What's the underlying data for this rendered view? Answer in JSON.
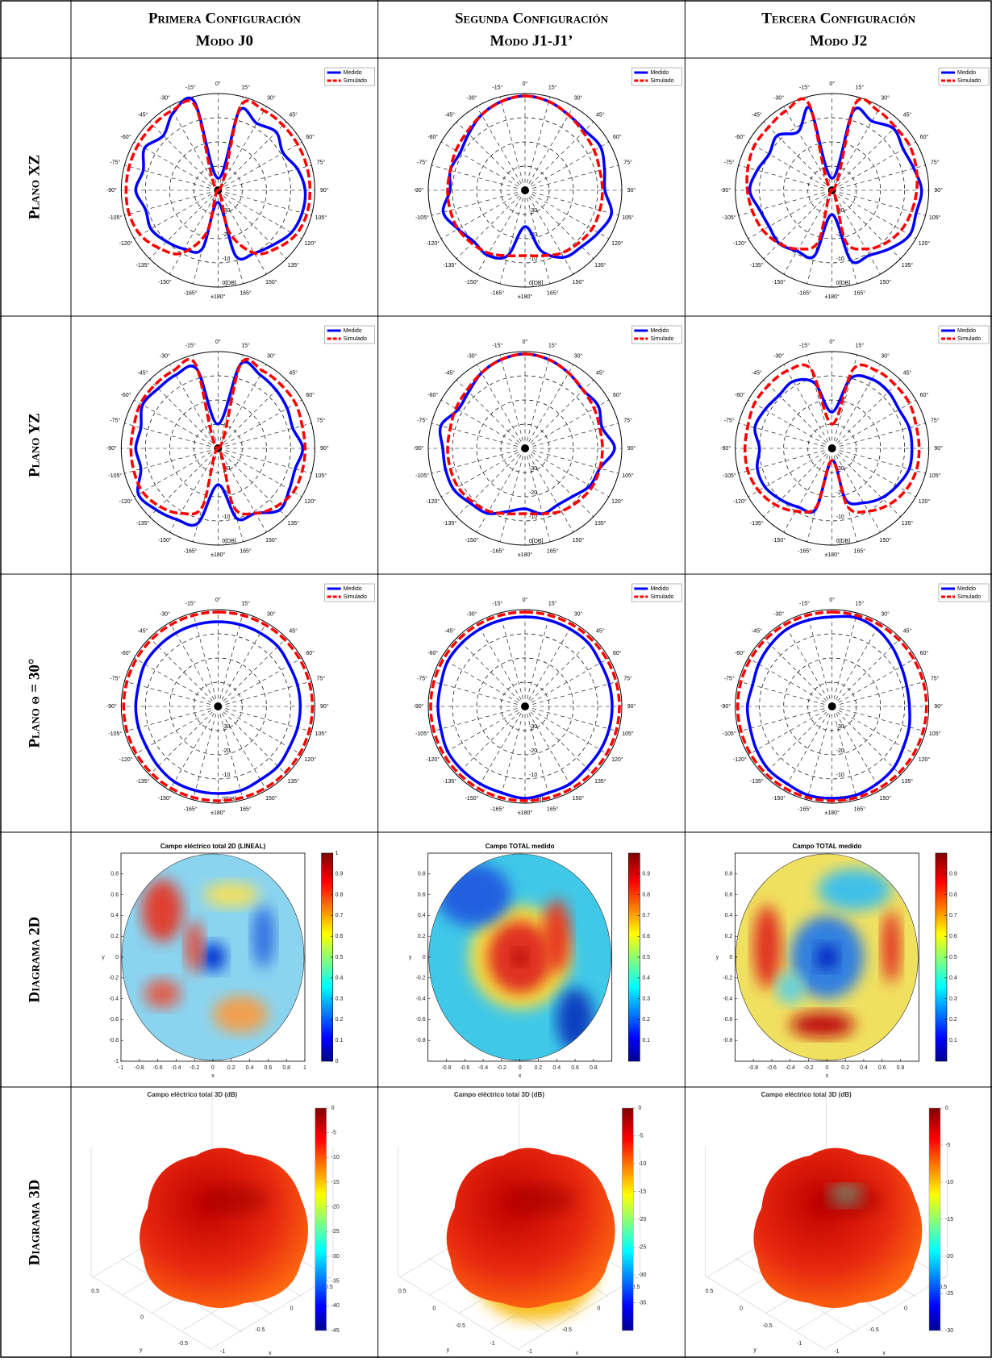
{
  "table": {
    "columns": [
      {
        "title": "Primera Configuración",
        "subtitle": "Modo J0"
      },
      {
        "title": "Segunda Configuración",
        "subtitle": "Modo J1-J1’"
      },
      {
        "title": "Tercera Configuración",
        "subtitle": "Modo J2"
      }
    ],
    "rows": [
      "Plano XZ",
      "Plano YZ",
      "Plano θ = 30°",
      "Diagrama 2D",
      "Diagrama 3D"
    ]
  },
  "polar_axis": {
    "theta": [
      0,
      15,
      30,
      45,
      60,
      75,
      90,
      105,
      120,
      135,
      150,
      165,
      180,
      195,
      210,
      225,
      240,
      255,
      270,
      285,
      300,
      315,
      330,
      345
    ],
    "theta_labels": [
      "0°",
      "15°",
      "30°",
      "45°",
      "60°",
      "75°",
      "90°",
      "105°",
      "120°",
      "135°",
      "150°",
      "165°",
      "±180°",
      "-165°",
      "-150°",
      "-135°",
      "-120°",
      "-105°",
      "-90°",
      "-75°",
      "-60°",
      "-45°",
      "-30°",
      "-15°"
    ],
    "rlim": [
      -40,
      0
    ],
    "rticks": [
      -30,
      -20,
      -10,
      {
        "value": 0,
        "label": "0[DB]"
      }
    ]
  },
  "chart_data": [
    {
      "type": "polar",
      "series": [
        {
          "name": "Medido",
          "color": "#0000ff",
          "values": [
            -35,
            -6,
            -8,
            -6,
            -9,
            -6,
            -4,
            -4,
            -5,
            -8,
            -10,
            -12,
            -35,
            -15,
            -12,
            -10,
            -8,
            -9,
            -6,
            -8,
            -5,
            -8,
            -3,
            -2
          ]
        },
        {
          "name": "Simulado",
          "color": "#ff0000",
          "dashed": true,
          "values": [
            -40,
            -4,
            -2,
            -2,
            -2,
            -2,
            -2,
            -2,
            -3,
            -6,
            -10,
            -22,
            -40,
            -22,
            -10,
            -6,
            -3,
            -2,
            -2,
            -2,
            -2,
            -2,
            -2,
            -4
          ]
        }
      ]
    },
    {
      "type": "polar",
      "series": [
        {
          "name": "Medido",
          "color": "#0000ff",
          "values": [
            -1,
            -2,
            -4,
            -5,
            -4,
            -6,
            -7,
            -3,
            -5,
            -7,
            -8,
            -14,
            -25,
            -12,
            -9,
            -10,
            -8,
            -5,
            -9,
            -8,
            -9,
            -7,
            -4,
            -2
          ]
        },
        {
          "name": "Simulado",
          "color": "#ff0000",
          "dashed": true,
          "values": [
            -1,
            -2,
            -4,
            -6,
            -7,
            -8,
            -8,
            -8,
            -8,
            -9,
            -10,
            -12,
            -13,
            -12,
            -10,
            -9,
            -8,
            -8,
            -8,
            -8,
            -7,
            -6,
            -4,
            -2
          ]
        }
      ]
    },
    {
      "type": "polar",
      "series": [
        {
          "name": "Medido",
          "color": "#0000ff",
          "values": [
            -35,
            -6,
            -7,
            -4,
            -6,
            -5,
            -3,
            -4,
            -3,
            -6,
            -9,
            -10,
            -30,
            -12,
            -11,
            -9,
            -10,
            -9,
            -6,
            -8,
            -10,
            -8,
            -12,
            -5
          ]
        },
        {
          "name": "Simulado",
          "color": "#ff0000",
          "dashed": true,
          "values": [
            -40,
            -3,
            -2,
            -3,
            -3,
            -4,
            -5,
            -6,
            -7,
            -9,
            -12,
            -18,
            -40,
            -18,
            -12,
            -9,
            -7,
            -6,
            -5,
            -4,
            -3,
            -3,
            -2,
            -3
          ]
        }
      ]
    },
    {
      "type": "polar",
      "series": [
        {
          "name": "Medido",
          "color": "#0000ff",
          "values": [
            -30,
            -4,
            -5,
            -6,
            -7,
            -8,
            -5,
            -7,
            -6,
            -4,
            -9,
            -10,
            -25,
            -8,
            -6,
            -4,
            -2,
            -7,
            -6,
            -7,
            -4,
            -5,
            -5,
            -6
          ]
        },
        {
          "name": "Simulado",
          "color": "#ff0000",
          "dashed": true,
          "values": [
            -40,
            -4,
            -3,
            -3,
            -3,
            -4,
            -4,
            -4,
            -4,
            -6,
            -9,
            -15,
            -40,
            -15,
            -9,
            -6,
            -4,
            -4,
            -4,
            -4,
            -3,
            -3,
            -3,
            -4
          ]
        }
      ]
    },
    {
      "type": "polar",
      "series": [
        {
          "name": "Medido",
          "color": "#0000ff",
          "values": [
            -1,
            -2,
            -4,
            -6,
            -5,
            -7,
            -3,
            -8,
            -9,
            -12,
            -13,
            -12,
            -15,
            -13,
            -9,
            -8,
            -6,
            -6,
            -6,
            -4,
            -8,
            -7,
            -4,
            -2
          ]
        },
        {
          "name": "Simulado",
          "color": "#ff0000",
          "dashed": true,
          "values": [
            -1,
            -2,
            -4,
            -6,
            -7,
            -8,
            -8,
            -8,
            -8,
            -9,
            -10,
            -12,
            -13,
            -12,
            -10,
            -9,
            -8,
            -8,
            -8,
            -8,
            -7,
            -6,
            -4,
            -2
          ]
        }
      ]
    },
    {
      "type": "polar",
      "series": [
        {
          "name": "Medido",
          "color": "#0000ff",
          "values": [
            -25,
            -10,
            -7,
            -7,
            -8,
            -7,
            -7,
            -7,
            -9,
            -11,
            -14,
            -18,
            -35,
            -14,
            -12,
            -10,
            -8,
            -8,
            -10,
            -7,
            -8,
            -9,
            -8,
            -12
          ]
        },
        {
          "name": "Simulado",
          "color": "#ff0000",
          "dashed": true,
          "values": [
            -30,
            -6,
            -3,
            -3,
            -3,
            -4,
            -4,
            -4,
            -5,
            -7,
            -10,
            -15,
            -35,
            -15,
            -10,
            -7,
            -5,
            -4,
            -4,
            -4,
            -3,
            -3,
            -3,
            -6
          ]
        }
      ]
    },
    {
      "type": "polar",
      "series": [
        {
          "name": "Medido",
          "color": "#0000ff",
          "values": [
            -5,
            -5,
            -5,
            -5,
            -6,
            -6,
            -6,
            -6,
            -6,
            -5,
            -5,
            -4,
            -4,
            -4,
            -4,
            -5,
            -6,
            -6,
            -6,
            -6,
            -5,
            -5,
            -5,
            -5
          ]
        },
        {
          "name": "Simulado",
          "color": "#ff0000",
          "dashed": true,
          "values": [
            -1,
            -1,
            -1,
            -1,
            -1,
            -1,
            -1,
            -1,
            -1,
            -1,
            -1,
            -1,
            -1,
            -1,
            -1,
            -1,
            -1,
            -1,
            -1,
            -1,
            -1,
            -1,
            -1,
            -1
          ]
        }
      ]
    },
    {
      "type": "polar",
      "series": [
        {
          "name": "Medido",
          "color": "#0000ff",
          "values": [
            -3,
            -3,
            -3,
            -3,
            -4,
            -4,
            -4,
            -4,
            -4,
            -4,
            -3,
            -3,
            -2,
            -3,
            -3,
            -3,
            -3,
            -4,
            -4,
            -4,
            -3,
            -3,
            -3,
            -3
          ]
        },
        {
          "name": "Simulado",
          "color": "#ff0000",
          "dashed": true,
          "values": [
            -1,
            -1,
            -1,
            -1,
            -1,
            -1,
            -1,
            -1,
            -1,
            -1,
            -1,
            -1,
            -1,
            -1,
            -1,
            -1,
            -1,
            -1,
            -1,
            -1,
            -1,
            -1,
            -1,
            -1
          ]
        }
      ]
    },
    {
      "type": "polar",
      "series": [
        {
          "name": "Medido",
          "color": "#0000ff",
          "values": [
            -3,
            -2,
            -3,
            -5,
            -7,
            -8,
            -8,
            -7,
            -6,
            -4,
            -3,
            -2,
            -2,
            -2,
            -3,
            -3,
            -4,
            -5,
            -5,
            -6,
            -5,
            -4,
            -3,
            -3
          ]
        },
        {
          "name": "Simulado",
          "color": "#ff0000",
          "dashed": true,
          "values": [
            -1,
            -1,
            -1,
            -1,
            -1,
            -1,
            -1,
            -1,
            -1,
            -1,
            -1,
            -1,
            -1,
            -1,
            -1,
            -1,
            -1,
            -1,
            -1,
            -1,
            -1,
            -1,
            -1,
            -1
          ]
        }
      ]
    },
    {
      "type": "heatmap",
      "title": "Campo eléctrico total 2D (LINEAL)",
      "xlabel": "x",
      "ylabel": "y",
      "xlim": [
        -1,
        1
      ],
      "ylim": [
        -1,
        1
      ],
      "xticks": [
        -1,
        -0.8,
        -0.6,
        -0.4,
        -0.2,
        0,
        0.2,
        0.4,
        0.6,
        0.8,
        1
      ],
      "yticks": [
        -1,
        -0.8,
        -0.6,
        -0.4,
        -0.2,
        0,
        0.2,
        0.4,
        0.6,
        0.8
      ],
      "clim": [
        0,
        1
      ],
      "cticks": [
        0,
        0.1,
        0.2,
        0.3,
        0.4,
        0.5,
        0.6,
        0.7,
        0.8,
        0.9,
        1
      ]
    },
    {
      "type": "heatmap",
      "title": "Campo TOTAL medido",
      "xlabel": "x",
      "ylabel": "y",
      "xlim": [
        -1,
        1
      ],
      "ylim": [
        -1,
        1
      ],
      "xticks": [
        -0.8,
        -0.6,
        -0.4,
        -0.2,
        0,
        0.2,
        0.4,
        0.6,
        0.8
      ],
      "yticks": [
        -0.8,
        -0.6,
        -0.4,
        -0.2,
        0,
        0.2,
        0.4,
        0.6,
        0.8
      ],
      "clim": [
        0,
        1
      ],
      "cticks": [
        0.1,
        0.2,
        0.3,
        0.4,
        0.5,
        0.6,
        0.7,
        0.8,
        0.9
      ]
    },
    {
      "type": "heatmap",
      "title": "Campo TOTAL medido",
      "xlabel": "x",
      "ylabel": "y",
      "xlim": [
        -1,
        1
      ],
      "ylim": [
        -1,
        1
      ],
      "xticks": [
        -0.8,
        -0.6,
        -0.4,
        -0.2,
        0,
        0.2,
        0.4,
        0.6,
        0.8
      ],
      "yticks": [
        -0.8,
        -0.6,
        -0.4,
        -0.2,
        0,
        0.2,
        0.4,
        0.6,
        0.8
      ],
      "clim": [
        0,
        1
      ],
      "cticks": [
        0.1,
        0.2,
        0.3,
        0.4,
        0.5,
        0.6,
        0.7,
        0.8,
        0.9
      ]
    },
    {
      "type": "surface3d",
      "title": "Campo eléctrico total 3D (dB)",
      "xlabel": "x",
      "ylabel": "y",
      "xticks": [
        -1,
        -0.5,
        0,
        0.5
      ],
      "yticks": [
        -0.5,
        0,
        0.5
      ],
      "clim": [
        -45,
        0
      ],
      "cticks": [
        0,
        -5,
        -10,
        -15,
        -20,
        -25,
        -30,
        -35,
        -40,
        -45
      ]
    },
    {
      "type": "surface3d",
      "title": "Campo eléctrico total 3D (dB)",
      "xlabel": "x",
      "ylabel": "y",
      "xticks": [
        -1,
        -0.5,
        0,
        0.5
      ],
      "yticks": [
        -1,
        -0.5,
        0,
        0.5
      ],
      "clim": [
        -40,
        0
      ],
      "cticks": [
        0,
        -5,
        -10,
        -15,
        -20,
        -25,
        -30,
        -35
      ]
    },
    {
      "type": "surface3d",
      "title": "Campo eléctrico total 3D (dB)",
      "xlabel": "x",
      "ylabel": "y",
      "xticks": [
        -1,
        -0.5,
        0,
        0.5
      ],
      "yticks": [
        -1,
        -0.5,
        0,
        0.5
      ],
      "clim": [
        -30,
        0
      ],
      "cticks": [
        0,
        -5,
        -10,
        -15,
        -20,
        -25,
        -30
      ]
    }
  ]
}
